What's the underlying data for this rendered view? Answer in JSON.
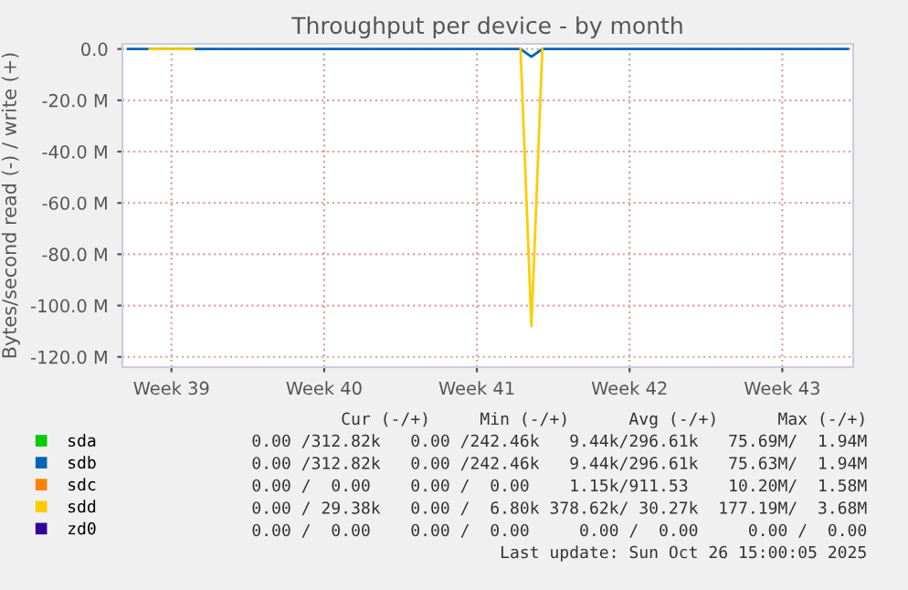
{
  "chart_data": {
    "type": "line",
    "title": "Throughput per device - by month",
    "ylabel": "Bytes/second read (-) / write (+)",
    "categories": [
      null,
      null,
      null,
      null,
      "Week 39",
      null,
      null,
      null,
      null,
      null,
      null,
      null,
      null,
      null,
      null,
      null,
      null,
      null,
      "Week 40",
      null,
      null,
      null,
      null,
      null,
      null,
      null,
      null,
      null,
      null,
      null,
      null,
      null,
      "Week 41",
      null,
      null,
      null,
      null,
      null,
      null,
      null,
      null,
      null,
      null,
      null,
      null,
      null,
      "Week 42",
      null,
      null,
      null,
      null,
      null,
      null,
      null,
      null,
      null,
      null,
      null,
      null,
      null,
      "Week 43",
      null,
      null,
      null,
      null,
      null,
      null
    ],
    "series": [
      {
        "name": "sda",
        "color": "#00cc00",
        "values": [
          null,
          null,
          null,
          null,
          null,
          null,
          null,
          null,
          null,
          null,
          null,
          null,
          null,
          null,
          null,
          null,
          null,
          null,
          null,
          null,
          null,
          null,
          null,
          null,
          null,
          null,
          null,
          null,
          null,
          null,
          null,
          null,
          null,
          null,
          null,
          null,
          null,
          null,
          null,
          null,
          null,
          null,
          null,
          null,
          null,
          null,
          null,
          null,
          null,
          null,
          null,
          null,
          null,
          null,
          null,
          null,
          null,
          null,
          null,
          null,
          null,
          null,
          null,
          null,
          null,
          null,
          null
        ]
      },
      {
        "name": "sdb",
        "color": "#0066b3",
        "values": [
          0,
          0,
          0,
          0,
          0,
          0,
          0,
          0,
          0,
          0,
          0,
          0,
          0,
          0,
          0,
          0,
          0,
          0,
          0,
          0,
          0,
          0,
          0,
          0,
          0,
          0,
          0,
          0,
          0,
          0,
          0,
          0,
          0,
          0,
          0,
          0,
          0,
          -3,
          0,
          0,
          0,
          0,
          0,
          0,
          0,
          0,
          0,
          0,
          0,
          0,
          0,
          0,
          0,
          0,
          0,
          0,
          0,
          0,
          0,
          0,
          0,
          0,
          0,
          0,
          0,
          0,
          0
        ]
      },
      {
        "name": "sdc",
        "color": "#ff8000",
        "values": [
          null,
          null,
          null,
          null,
          null,
          null,
          null,
          null,
          null,
          null,
          null,
          null,
          null,
          null,
          null,
          null,
          null,
          null,
          null,
          null,
          null,
          null,
          null,
          null,
          null,
          null,
          null,
          null,
          null,
          null,
          null,
          null,
          null,
          null,
          null,
          null,
          null,
          null,
          null,
          null,
          null,
          null,
          null,
          null,
          null,
          null,
          null,
          null,
          null,
          null,
          null,
          null,
          null,
          null,
          null,
          null,
          null,
          null,
          null,
          null,
          null,
          null,
          null,
          null,
          null,
          null,
          null
        ]
      },
      {
        "name": "sdd",
        "color": "#ffcc00",
        "values": [
          null,
          null,
          0,
          0,
          0,
          0,
          0,
          null,
          null,
          null,
          null,
          null,
          null,
          null,
          null,
          null,
          null,
          null,
          null,
          null,
          null,
          null,
          null,
          null,
          null,
          null,
          null,
          null,
          null,
          null,
          null,
          null,
          null,
          null,
          null,
          null,
          0,
          -108,
          0,
          null,
          null,
          null,
          null,
          null,
          null,
          null,
          null,
          null,
          null,
          null,
          null,
          null,
          null,
          null,
          null,
          null,
          null,
          null,
          null,
          null,
          null,
          null,
          null,
          null,
          null,
          null,
          null
        ]
      },
      {
        "name": "zd0",
        "color": "#330099",
        "values": [
          null,
          null,
          null,
          null,
          null,
          null,
          null,
          null,
          null,
          null,
          null,
          null,
          null,
          null,
          null,
          null,
          null,
          null,
          null,
          null,
          null,
          null,
          null,
          null,
          null,
          null,
          null,
          null,
          null,
          null,
          null,
          null,
          null,
          null,
          null,
          null,
          null,
          null,
          null,
          null,
          null,
          null,
          null,
          null,
          null,
          null,
          null,
          null,
          null,
          null,
          null,
          null,
          null,
          null,
          null,
          null,
          null,
          null,
          null,
          null,
          null,
          null,
          null,
          null,
          null,
          null,
          null
        ]
      }
    ],
    "ylim": [
      -124,
      2
    ],
    "yticks": [
      {
        "value": 0,
        "label": "0.0"
      },
      {
        "value": -20,
        "label": "-20.0 M"
      },
      {
        "value": -40,
        "label": "-40.0 M"
      },
      {
        "value": -60,
        "label": "-60.0 M"
      },
      {
        "value": -80,
        "label": "-80.0 M"
      },
      {
        "value": -100,
        "label": "-100.0 M"
      },
      {
        "value": -120,
        "label": "-120.0 M"
      }
    ],
    "grid": true,
    "legend": "bottom left",
    "marker": "none",
    "line_style": "solid",
    "annotations": [
      "Cur (-/+)     Min (-/+)      Avg (-/+)      Max (-/+)",
      "0.00 /312.82k   0.00 /242.46k   9.44k/296.61k   75.69M/  1.94M",
      "0.00 /312.82k   0.00 /242.46k   9.44k/296.61k   75.63M/  1.94M",
      "0.00 /  0.00    0.00 /  0.00    1.15k/911.53    10.20M/  1.58M",
      "0.00 / 29.38k   0.00 /  6.80k 378.62k/ 30.27k  177.19M/  3.68M",
      "0.00 /  0.00    0.00 /  0.00     0.00 /  0.00     0.00 /  0.00",
      "Last update: Sun Oct 26 15:00:05 2025"
    ]
  }
}
